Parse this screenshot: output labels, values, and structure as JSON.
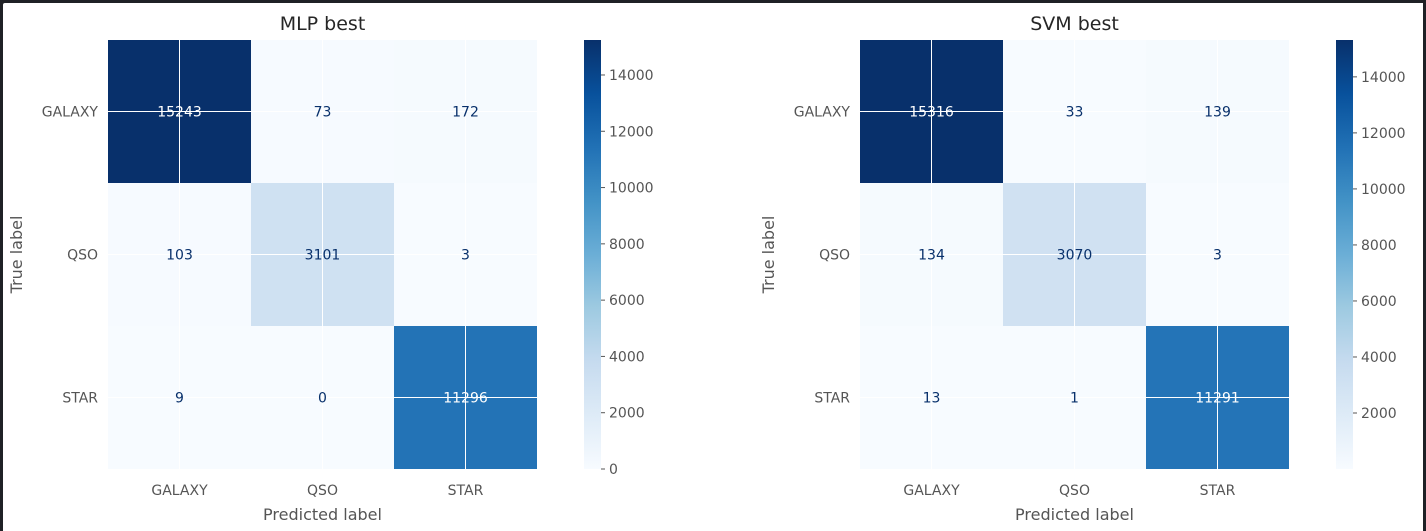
{
  "colors": {
    "colormap": "Blues",
    "text_light": "#ffffff",
    "text_dark": "#08306b",
    "grid": "#ffffff",
    "tick_text": "#555555",
    "title_text": "#262626"
  },
  "chart_data": [
    {
      "type": "heatmap",
      "title": "MLP best",
      "xlabel": "Predicted label",
      "ylabel": "True label",
      "categories": [
        "GALAXY",
        "QSO",
        "STAR"
      ],
      "matrix": [
        [
          15243,
          73,
          172
        ],
        [
          103,
          3101,
          3
        ],
        [
          9,
          0,
          11296
        ]
      ],
      "color_range": [
        0,
        15243
      ],
      "colorbar_ticks": [
        0,
        2000,
        4000,
        6000,
        8000,
        10000,
        12000,
        14000
      ],
      "grid": true
    },
    {
      "type": "heatmap",
      "title": "SVM best",
      "xlabel": "Predicted label",
      "ylabel": "True label",
      "categories": [
        "GALAXY",
        "QSO",
        "STAR"
      ],
      "matrix": [
        [
          15316,
          33,
          139
        ],
        [
          134,
          3070,
          3
        ],
        [
          13,
          1,
          11291
        ]
      ],
      "color_range": [
        1,
        15316
      ],
      "colorbar_ticks": [
        2000,
        4000,
        6000,
        8000,
        10000,
        12000,
        14000
      ],
      "grid": true
    }
  ]
}
